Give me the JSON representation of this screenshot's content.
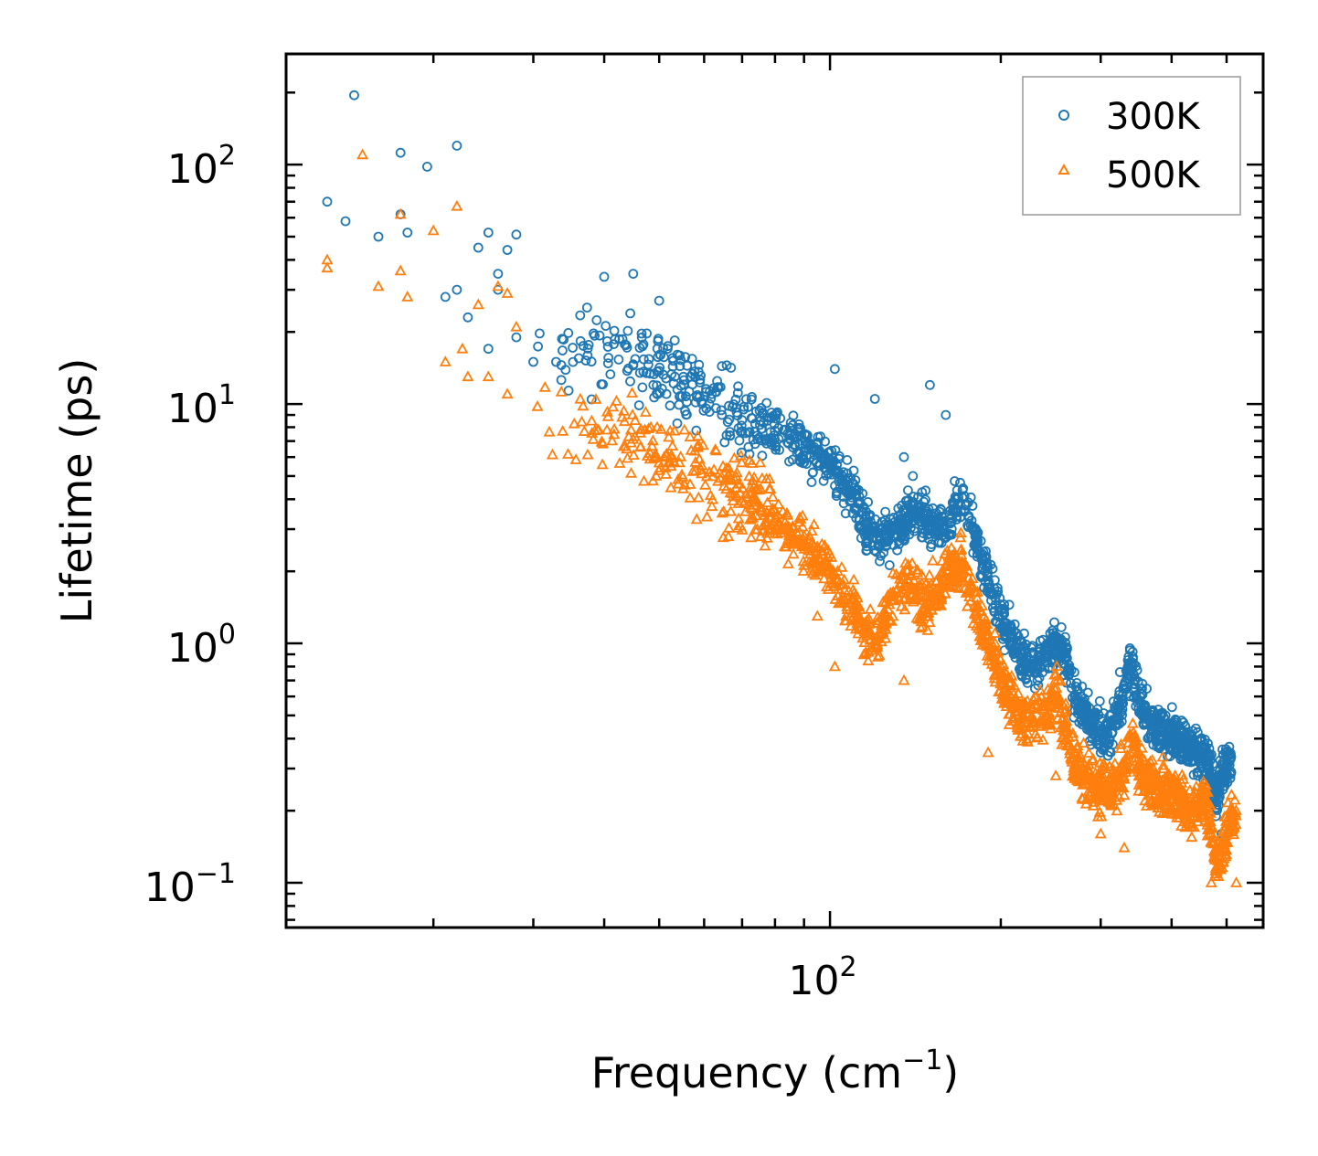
{
  "chart_data": {
    "type": "scatter",
    "xscale": "log",
    "yscale": "log",
    "xlim": [
      11,
      580
    ],
    "ylim": [
      0.065,
      290
    ],
    "xlabel_main": "Frequency (cm",
    "xlabel_sup": "−1",
    "xlabel_end": ")",
    "ylabel": "Lifetime (ps)",
    "xticks": [
      {
        "value": 100,
        "base": "10",
        "exp": "2"
      }
    ],
    "yticks": [
      {
        "value": 0.1,
        "base": "10",
        "exp": "−1"
      },
      {
        "value": 1,
        "base": "10",
        "exp": "0"
      },
      {
        "value": 10,
        "base": "10",
        "exp": "1"
      },
      {
        "value": 100,
        "base": "10",
        "exp": "2"
      }
    ],
    "legend": {
      "position": "top-right",
      "entries": [
        "300K",
        "500K"
      ]
    },
    "series": [
      {
        "name": "300K",
        "marker": "circle",
        "color": "#1f77b4",
        "anchor_points": [
          [
            14.5,
            195
          ],
          [
            17.5,
            112
          ],
          [
            19.5,
            98
          ],
          [
            22,
            120
          ],
          [
            13,
            70
          ],
          [
            14,
            58
          ],
          [
            16,
            50
          ],
          [
            17.5,
            62
          ],
          [
            18,
            52
          ],
          [
            21,
            28
          ],
          [
            22,
            30
          ],
          [
            23,
            23
          ],
          [
            24,
            45
          ],
          [
            25,
            52
          ],
          [
            26,
            35
          ],
          [
            27,
            44
          ],
          [
            28,
            51
          ],
          [
            25,
            17
          ],
          [
            26,
            30
          ],
          [
            28,
            19
          ],
          [
            30,
            15
          ],
          [
            40,
            34
          ],
          [
            45,
            35
          ],
          [
            50,
            27
          ],
          [
            120,
            10.5
          ],
          [
            102,
            14
          ],
          [
            135,
            6
          ],
          [
            140,
            5
          ],
          [
            150,
            12
          ],
          [
            160,
            9
          ],
          [
            290,
            0.4
          ],
          [
            300,
            0.35
          ],
          [
            490,
            0.16
          ]
        ],
        "trend": [
          [
            30,
            18
          ],
          [
            40,
            16
          ],
          [
            50,
            14
          ],
          [
            60,
            11
          ],
          [
            70,
            9
          ],
          [
            80,
            7.5
          ],
          [
            90,
            6.5
          ],
          [
            100,
            5.5
          ],
          [
            110,
            4.2
          ],
          [
            115,
            3.2
          ],
          [
            125,
            2.6
          ],
          [
            135,
            3.3
          ],
          [
            140,
            3.6
          ],
          [
            150,
            3.2
          ],
          [
            160,
            3.0
          ],
          [
            170,
            4.2
          ],
          [
            180,
            2.8
          ],
          [
            190,
            1.8
          ],
          [
            200,
            1.3
          ],
          [
            210,
            1.0
          ],
          [
            220,
            0.85
          ],
          [
            230,
            0.8
          ],
          [
            250,
            1.0
          ],
          [
            260,
            0.9
          ],
          [
            270,
            0.6
          ],
          [
            290,
            0.45
          ],
          [
            310,
            0.4
          ],
          [
            330,
            0.65
          ],
          [
            340,
            0.85
          ],
          [
            350,
            0.6
          ],
          [
            370,
            0.45
          ],
          [
            400,
            0.42
          ],
          [
            450,
            0.35
          ],
          [
            470,
            0.3
          ],
          [
            480,
            0.22
          ],
          [
            490,
            0.28
          ],
          [
            510,
            0.32
          ]
        ],
        "spread_dex": 0.09
      },
      {
        "name": "500K",
        "marker": "triangle",
        "color": "#ff7f0e",
        "anchor_points": [
          [
            15,
            110
          ],
          [
            22,
            67
          ],
          [
            13,
            40
          ],
          [
            13,
            37
          ],
          [
            16,
            31
          ],
          [
            17.5,
            36
          ],
          [
            18,
            28
          ],
          [
            17.5,
            62
          ],
          [
            20,
            53
          ],
          [
            21,
            15
          ],
          [
            22.5,
            17
          ],
          [
            24,
            26
          ],
          [
            26,
            31
          ],
          [
            27,
            29
          ],
          [
            28,
            21
          ],
          [
            23,
            13
          ],
          [
            25,
            13
          ],
          [
            27,
            11
          ],
          [
            95,
            1.3
          ],
          [
            102,
            0.8
          ],
          [
            135,
            0.7
          ],
          [
            190,
            0.35
          ],
          [
            250,
            0.28
          ],
          [
            300,
            0.16
          ],
          [
            330,
            0.14
          ],
          [
            520,
            0.1
          ],
          [
            470,
            0.1
          ]
        ],
        "trend": [
          [
            30,
            10
          ],
          [
            40,
            8
          ],
          [
            50,
            6.5
          ],
          [
            60,
            5
          ],
          [
            70,
            4
          ],
          [
            80,
            3.3
          ],
          [
            90,
            2.6
          ],
          [
            100,
            2.0
          ],
          [
            110,
            1.4
          ],
          [
            115,
            1.1
          ],
          [
            120,
            1.0
          ],
          [
            130,
            1.6
          ],
          [
            135,
            1.8
          ],
          [
            145,
            1.5
          ],
          [
            155,
            1.6
          ],
          [
            160,
            2.0
          ],
          [
            170,
            2.2
          ],
          [
            180,
            1.5
          ],
          [
            190,
            1.0
          ],
          [
            200,
            0.7
          ],
          [
            210,
            0.55
          ],
          [
            220,
            0.48
          ],
          [
            240,
            0.5
          ],
          [
            250,
            0.65
          ],
          [
            260,
            0.45
          ],
          [
            270,
            0.3
          ],
          [
            290,
            0.26
          ],
          [
            310,
            0.24
          ],
          [
            330,
            0.28
          ],
          [
            340,
            0.45
          ],
          [
            350,
            0.3
          ],
          [
            370,
            0.25
          ],
          [
            400,
            0.24
          ],
          [
            430,
            0.2
          ],
          [
            460,
            0.22
          ],
          [
            480,
            0.12
          ],
          [
            500,
            0.16
          ],
          [
            520,
            0.2
          ]
        ],
        "spread_dex": 0.1
      }
    ]
  }
}
